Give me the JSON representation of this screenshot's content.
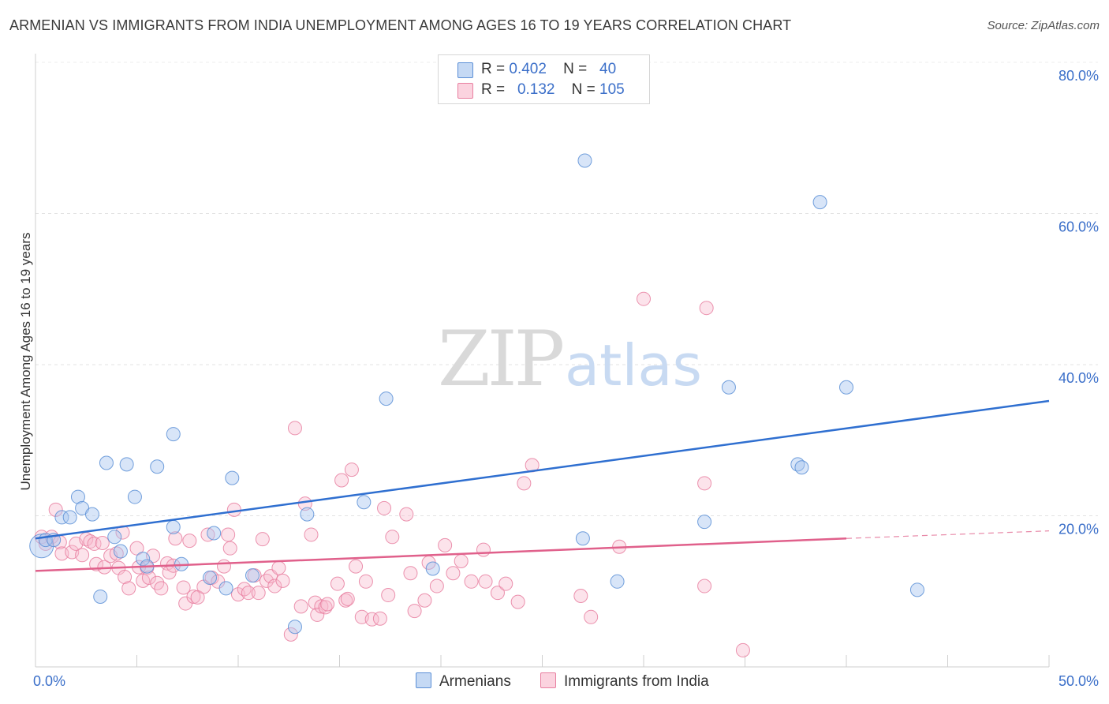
{
  "title": "ARMENIAN VS IMMIGRANTS FROM INDIA UNEMPLOYMENT AMONG AGES 16 TO 19 YEARS CORRELATION CHART",
  "source": "Source: ZipAtlas.com",
  "watermark": {
    "zip": "ZIP",
    "atlas": "atlas"
  },
  "legend": {
    "armenians": {
      "r_label": "R =",
      "r_value": "0.402",
      "n_label": "N =",
      "n_value": "40",
      "color": "#a9c6ef",
      "edge": "#5b8fd6"
    },
    "india": {
      "r_label": "R =",
      "r_value": "0.132",
      "n_label": "N =",
      "n_value": "105",
      "color": "#f7b9cc",
      "edge": "#e87fa0"
    }
  },
  "bottom_legend": {
    "armenians": "Armenians",
    "india": "Immigrants from India"
  },
  "chart_data": {
    "type": "scatter",
    "title": "ARMENIAN VS IMMIGRANTS FROM INDIA UNEMPLOYMENT AMONG AGES 16 TO 19 YEARS CORRELATION CHART",
    "xlabel": "",
    "ylabel": "Unemployment Among Ages 16 to 19 years",
    "xlim": [
      0,
      50
    ],
    "ylim": [
      0,
      80
    ],
    "x_tick_labels": [
      "0.0%",
      "50.0%"
    ],
    "y_ticks": [
      20,
      40,
      60,
      80
    ],
    "y_tick_labels": [
      "20.0%",
      "40.0%",
      "60.0%",
      "80.0%"
    ],
    "grid": true,
    "series": [
      {
        "name": "Armenians",
        "color": "#5b8fd6",
        "trend": {
          "x": [
            0,
            50
          ],
          "y": [
            17.0,
            35.2
          ],
          "dashed_from": null
        },
        "points": [
          [
            0.3,
            16.0
          ],
          [
            0.5,
            16.8
          ],
          [
            0.9,
            16.8
          ],
          [
            1.3,
            19.8
          ],
          [
            1.7,
            19.8
          ],
          [
            2.1,
            22.5
          ],
          [
            2.3,
            21.0
          ],
          [
            2.8,
            20.2
          ],
          [
            3.2,
            9.3
          ],
          [
            3.5,
            27.0
          ],
          [
            3.9,
            17.2
          ],
          [
            4.2,
            15.3
          ],
          [
            4.5,
            26.8
          ],
          [
            4.9,
            22.5
          ],
          [
            5.3,
            14.3
          ],
          [
            5.5,
            13.3
          ],
          [
            6.0,
            26.5
          ],
          [
            6.8,
            30.8
          ],
          [
            6.8,
            18.5
          ],
          [
            7.2,
            13.6
          ],
          [
            8.6,
            11.8
          ],
          [
            8.8,
            17.7
          ],
          [
            9.4,
            10.4
          ],
          [
            9.7,
            25.0
          ],
          [
            10.7,
            12.1
          ],
          [
            12.8,
            5.3
          ],
          [
            13.4,
            20.2
          ],
          [
            16.2,
            21.8
          ],
          [
            17.3,
            35.5
          ],
          [
            19.6,
            13.0
          ],
          [
            27.0,
            17.0
          ],
          [
            27.1,
            67.0
          ],
          [
            28.7,
            11.3
          ],
          [
            33.0,
            19.2
          ],
          [
            34.2,
            37.0
          ],
          [
            37.6,
            26.8
          ],
          [
            37.8,
            26.4
          ],
          [
            38.7,
            61.5
          ],
          [
            40.0,
            37.0
          ],
          [
            43.5,
            10.2
          ]
        ]
      },
      {
        "name": "Immigrants from India",
        "color": "#e87fa0",
        "trend": {
          "x": [
            0,
            40,
            50
          ],
          "y": [
            12.7,
            17.0,
            18.0
          ],
          "dashed_from": 40
        },
        "points": [
          [
            0.3,
            17.2
          ],
          [
            0.5,
            16.3
          ],
          [
            0.8,
            17.2
          ],
          [
            1.0,
            20.8
          ],
          [
            1.2,
            16.5
          ],
          [
            1.3,
            15.0
          ],
          [
            1.8,
            15.2
          ],
          [
            2.0,
            16.3
          ],
          [
            2.3,
            14.8
          ],
          [
            2.5,
            16.9
          ],
          [
            2.7,
            16.6
          ],
          [
            2.9,
            16.3
          ],
          [
            3.0,
            13.6
          ],
          [
            3.3,
            16.4
          ],
          [
            3.4,
            13.2
          ],
          [
            3.7,
            14.7
          ],
          [
            4.0,
            15.0
          ],
          [
            4.1,
            13.1
          ],
          [
            4.3,
            17.8
          ],
          [
            4.4,
            11.9
          ],
          [
            4.6,
            10.4
          ],
          [
            5.0,
            15.7
          ],
          [
            5.1,
            13.2
          ],
          [
            5.3,
            11.4
          ],
          [
            5.5,
            13.1
          ],
          [
            5.6,
            11.8
          ],
          [
            5.8,
            14.7
          ],
          [
            6.0,
            11.1
          ],
          [
            6.2,
            10.4
          ],
          [
            6.5,
            13.7
          ],
          [
            6.6,
            12.5
          ],
          [
            6.8,
            13.4
          ],
          [
            6.9,
            17.0
          ],
          [
            7.3,
            10.5
          ],
          [
            7.4,
            8.4
          ],
          [
            7.6,
            16.7
          ],
          [
            7.8,
            9.3
          ],
          [
            8.0,
            9.2
          ],
          [
            8.3,
            10.6
          ],
          [
            8.5,
            17.5
          ],
          [
            8.7,
            11.8
          ],
          [
            9.0,
            11.3
          ],
          [
            9.3,
            13.3
          ],
          [
            9.5,
            17.5
          ],
          [
            9.6,
            15.7
          ],
          [
            9.8,
            20.8
          ],
          [
            10.0,
            9.6
          ],
          [
            10.3,
            10.3
          ],
          [
            10.5,
            9.8
          ],
          [
            10.8,
            12.1
          ],
          [
            11.0,
            9.8
          ],
          [
            11.2,
            16.9
          ],
          [
            11.4,
            11.4
          ],
          [
            11.6,
            12.0
          ],
          [
            11.8,
            10.7
          ],
          [
            12.0,
            13.1
          ],
          [
            12.2,
            11.4
          ],
          [
            12.6,
            4.3
          ],
          [
            12.8,
            31.6
          ],
          [
            13.1,
            8.0
          ],
          [
            13.3,
            21.6
          ],
          [
            13.6,
            17.5
          ],
          [
            13.8,
            8.5
          ],
          [
            13.9,
            6.9
          ],
          [
            14.1,
            8.0
          ],
          [
            14.3,
            7.9
          ],
          [
            14.4,
            8.3
          ],
          [
            14.9,
            11.0
          ],
          [
            15.1,
            24.7
          ],
          [
            15.3,
            8.8
          ],
          [
            15.4,
            9.0
          ],
          [
            15.6,
            26.1
          ],
          [
            15.8,
            13.3
          ],
          [
            16.1,
            6.6
          ],
          [
            16.3,
            11.3
          ],
          [
            16.6,
            6.3
          ],
          [
            17.0,
            6.4
          ],
          [
            17.2,
            21.0
          ],
          [
            17.4,
            9.5
          ],
          [
            17.6,
            17.2
          ],
          [
            18.3,
            20.2
          ],
          [
            18.5,
            12.4
          ],
          [
            18.7,
            7.4
          ],
          [
            19.2,
            8.8
          ],
          [
            19.4,
            13.8
          ],
          [
            19.8,
            10.7
          ],
          [
            20.2,
            16.1
          ],
          [
            20.6,
            12.4
          ],
          [
            21.0,
            14.0
          ],
          [
            21.5,
            11.3
          ],
          [
            22.1,
            15.5
          ],
          [
            22.2,
            11.3
          ],
          [
            22.8,
            9.8
          ],
          [
            23.2,
            11.0
          ],
          [
            23.8,
            8.6
          ],
          [
            24.1,
            24.3
          ],
          [
            24.5,
            26.7
          ],
          [
            26.9,
            9.4
          ],
          [
            27.4,
            6.6
          ],
          [
            28.8,
            15.9
          ],
          [
            30.0,
            48.7
          ],
          [
            33.0,
            24.3
          ],
          [
            33.0,
            10.7
          ],
          [
            33.1,
            47.5
          ],
          [
            34.9,
            2.2
          ]
        ]
      }
    ]
  }
}
